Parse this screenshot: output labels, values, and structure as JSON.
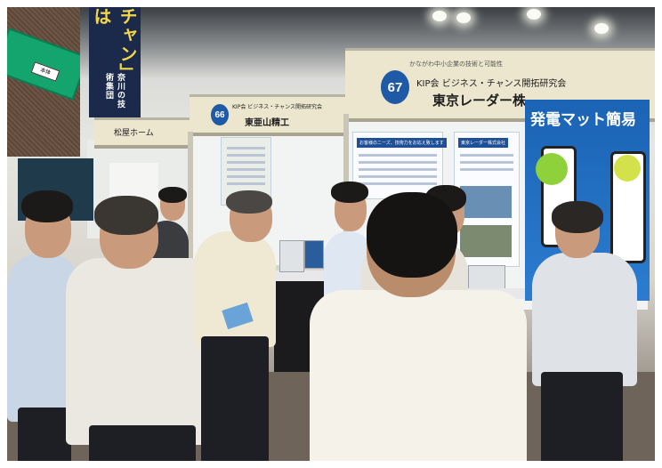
{
  "photo": {
    "banner_vertical": {
      "text": "チャン」は",
      "sub": "奈川の技術集団"
    },
    "booth_67": {
      "number": "67",
      "small_note": "かながわ中小企業の技術と可能性",
      "org_line": "KIP会 ビジネス・チャンス開拓研究会",
      "company": "東京レーダー株"
    },
    "booth_66": {
      "number": "66",
      "org_line": "KIP会 ビジネス・チャンス開拓研究会",
      "company": "東亜山精工"
    },
    "booth_left": {
      "company": "松屋ホーム"
    },
    "product_board": {
      "title": "発電マット簡易"
    },
    "poster_center": {
      "header": "お客様のニーズ、技術力をお応え致します"
    },
    "poster_right": {
      "header": "東京レーダー株式会社"
    },
    "inset": {
      "tag": "本体"
    }
  }
}
